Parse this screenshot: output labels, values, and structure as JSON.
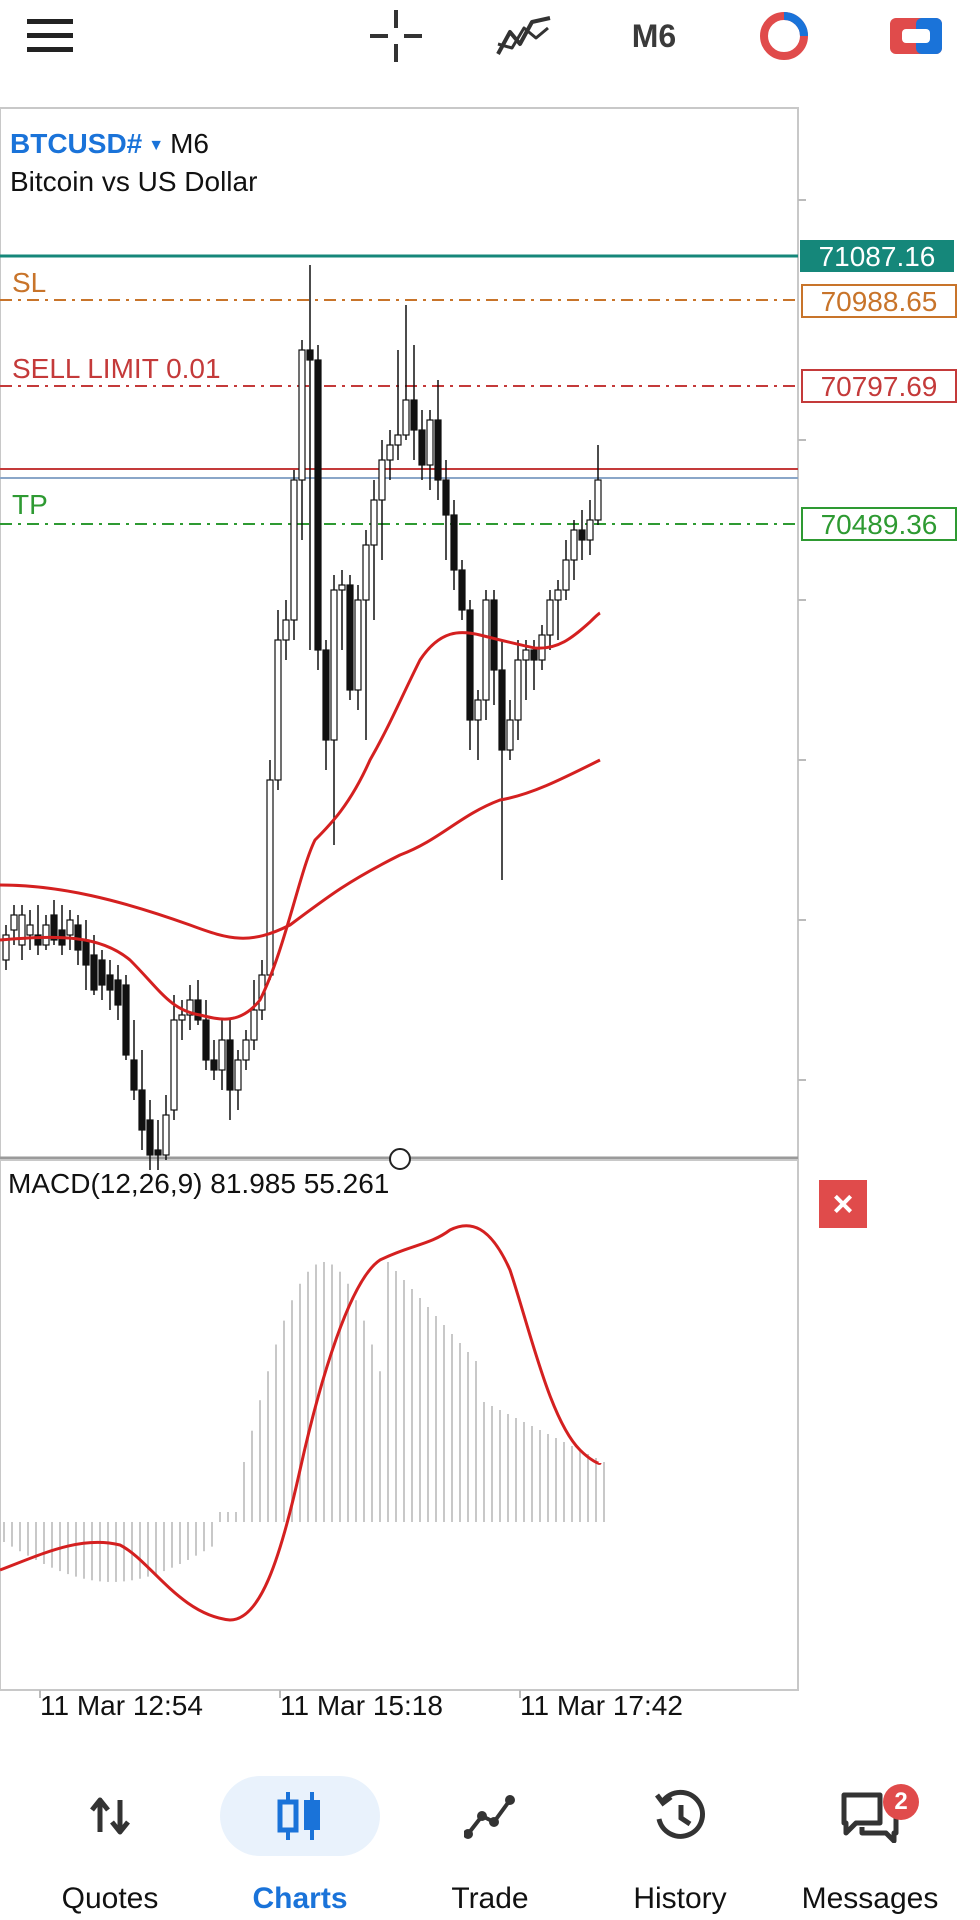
{
  "toolbar": {
    "menu_icon": "hamburger-icon",
    "crosshair_icon": "crosshair-icon",
    "indicators_icon": "indicators-icon",
    "timeframe": "M6",
    "objects_icon": "objects-icon",
    "trade_icon": "one-click-trading-icon"
  },
  "chart": {
    "symbol": "BTCUSD#",
    "timeframe": "M6",
    "description": "Bitcoin vs US Dollar",
    "levels": {
      "sl_label": "SL",
      "sl_price": "70988.65",
      "sell_limit_label": "SELL LIMIT 0.01",
      "sell_limit_price": "70797.69",
      "tp_label": "TP",
      "tp_price": "70489.36",
      "current_price": "71087.16"
    },
    "colors": {
      "current": "#15877a",
      "sl": "#c8742a",
      "sell_limit": "#c43a3a",
      "tp": "#2e9a32",
      "ma": "#d42020"
    },
    "macd": {
      "label": "MACD(12,26,9) 81.985 55.261",
      "close_icon": "close-icon"
    },
    "time_labels": [
      "11 Mar 12:54",
      "11 Mar 15:18",
      "11 Mar 17:42"
    ]
  },
  "nav": {
    "items": [
      {
        "label": "Quotes",
        "icon": "quotes-icon"
      },
      {
        "label": "Charts",
        "icon": "charts-icon"
      },
      {
        "label": "Trade",
        "icon": "trade-icon"
      },
      {
        "label": "History",
        "icon": "history-icon"
      },
      {
        "label": "Messages",
        "icon": "messages-icon",
        "badge": "2"
      }
    ],
    "active": "Charts"
  }
}
